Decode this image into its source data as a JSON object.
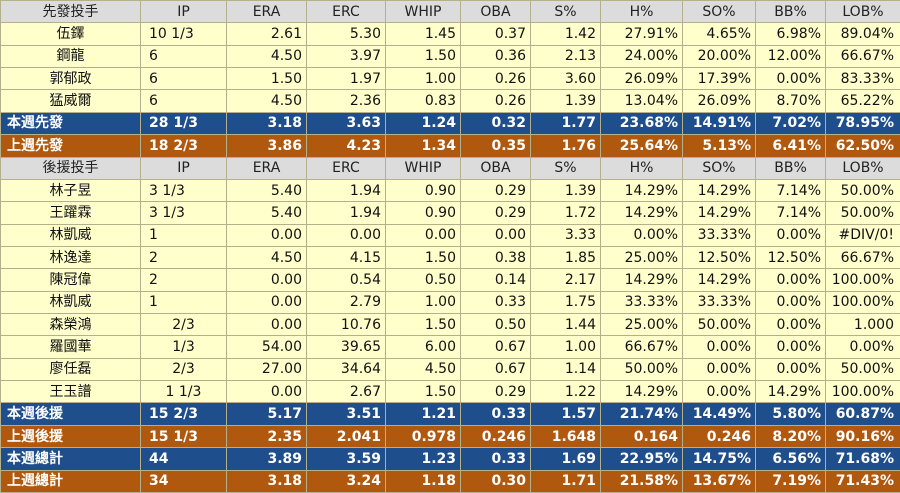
{
  "starters": {
    "header": [
      "先發投手",
      "IP",
      "ERA",
      "ERC",
      "WHIP",
      "OBA",
      "S%",
      "H%",
      "SO%",
      "BB%",
      "LOB%"
    ],
    "rows": [
      [
        "伍鐸",
        "10 1/3",
        "2.61",
        "5.30",
        "1.45",
        "0.37",
        "1.42",
        "27.91%",
        "4.65%",
        "6.98%",
        "89.04%"
      ],
      [
        "鋼龍",
        "6",
        "4.50",
        "3.97",
        "1.50",
        "0.36",
        "2.13",
        "24.00%",
        "20.00%",
        "12.00%",
        "66.67%"
      ],
      [
        "郭郁政",
        "6",
        "1.50",
        "1.97",
        "1.00",
        "0.26",
        "3.60",
        "26.09%",
        "17.39%",
        "0.00%",
        "83.33%"
      ],
      [
        "猛威爾",
        "6",
        "4.50",
        "2.36",
        "0.83",
        "0.26",
        "1.39",
        "13.04%",
        "26.09%",
        "8.70%",
        "65.22%"
      ]
    ],
    "this_week": [
      "本週先發",
      "28 1/3",
      "3.18",
      "3.63",
      "1.24",
      "0.32",
      "1.77",
      "23.68%",
      "14.91%",
      "7.02%",
      "78.95%"
    ],
    "last_week": [
      "上週先發",
      "18 2/3",
      "3.86",
      "4.23",
      "1.34",
      "0.35",
      "1.76",
      "25.64%",
      "5.13%",
      "6.41%",
      "62.50%"
    ]
  },
  "relievers": {
    "header": [
      "後援投手",
      "IP",
      "ERA",
      "ERC",
      "WHIP",
      "OBA",
      "S%",
      "H%",
      "SO%",
      "BB%",
      "LOB%"
    ],
    "rows": [
      [
        "林子昱",
        "3 1/3",
        "5.40",
        "1.94",
        "0.90",
        "0.29",
        "1.39",
        "14.29%",
        "14.29%",
        "7.14%",
        "50.00%"
      ],
      [
        "王躍霖",
        "3 1/3",
        "5.40",
        "1.94",
        "0.90",
        "0.29",
        "1.72",
        "14.29%",
        "14.29%",
        "7.14%",
        "50.00%"
      ],
      [
        "林凱威",
        "1",
        "0.00",
        "0.00",
        "0.00",
        "0.00",
        "3.33",
        "0.00%",
        "33.33%",
        "0.00%",
        "#DIV/0!"
      ],
      [
        "林逸達",
        "2",
        "4.50",
        "4.15",
        "1.50",
        "0.38",
        "1.85",
        "25.00%",
        "12.50%",
        "12.50%",
        "66.67%"
      ],
      [
        "陳冠偉",
        "2",
        "0.00",
        "0.54",
        "0.50",
        "0.14",
        "2.17",
        "14.29%",
        "14.29%",
        "0.00%",
        "100.00%"
      ],
      [
        "林凱威",
        "1",
        "0.00",
        "2.79",
        "1.00",
        "0.33",
        "1.75",
        "33.33%",
        "33.33%",
        "0.00%",
        "100.00%"
      ],
      [
        "森榮鴻",
        "2/3",
        "0.00",
        "10.76",
        "1.50",
        "0.50",
        "1.44",
        "25.00%",
        "50.00%",
        "0.00%",
        "1.000"
      ],
      [
        "羅國華",
        "1/3",
        "54.00",
        "39.65",
        "6.00",
        "0.67",
        "1.00",
        "66.67%",
        "0.00%",
        "0.00%",
        "0.00%"
      ],
      [
        "廖任磊",
        "2/3",
        "27.00",
        "34.64",
        "4.50",
        "0.67",
        "1.14",
        "50.00%",
        "0.00%",
        "0.00%",
        "50.00%"
      ],
      [
        "王玉譜",
        "1 1/3",
        "0.00",
        "2.67",
        "1.50",
        "0.29",
        "1.22",
        "14.29%",
        "0.00%",
        "14.29%",
        "100.00%"
      ]
    ],
    "this_week": [
      "本週後援",
      "15 2/3",
      "5.17",
      "3.51",
      "1.21",
      "0.33",
      "1.57",
      "21.74%",
      "14.49%",
      "5.80%",
      "60.87%"
    ],
    "last_week": [
      "上週後援",
      "15 1/3",
      "2.35",
      "2.041",
      "0.978",
      "0.246",
      "1.648",
      "0.164",
      "0.246",
      "8.20%",
      "90.16%"
    ]
  },
  "totals": {
    "this_week": [
      "本週總計",
      "44",
      "3.89",
      "3.59",
      "1.23",
      "0.33",
      "1.69",
      "22.95%",
      "14.75%",
      "6.56%",
      "71.68%"
    ],
    "last_week": [
      "上週總計",
      "34",
      "3.18",
      "3.24",
      "1.18",
      "0.30",
      "1.71",
      "21.58%",
      "13.67%",
      "7.19%",
      "71.43%"
    ]
  },
  "colors": {
    "header_bg": "#dcdcdc",
    "data_bg": "#ffffcc",
    "this_week_bg": "#1f4e8c",
    "last_week_bg": "#b0590e"
  }
}
